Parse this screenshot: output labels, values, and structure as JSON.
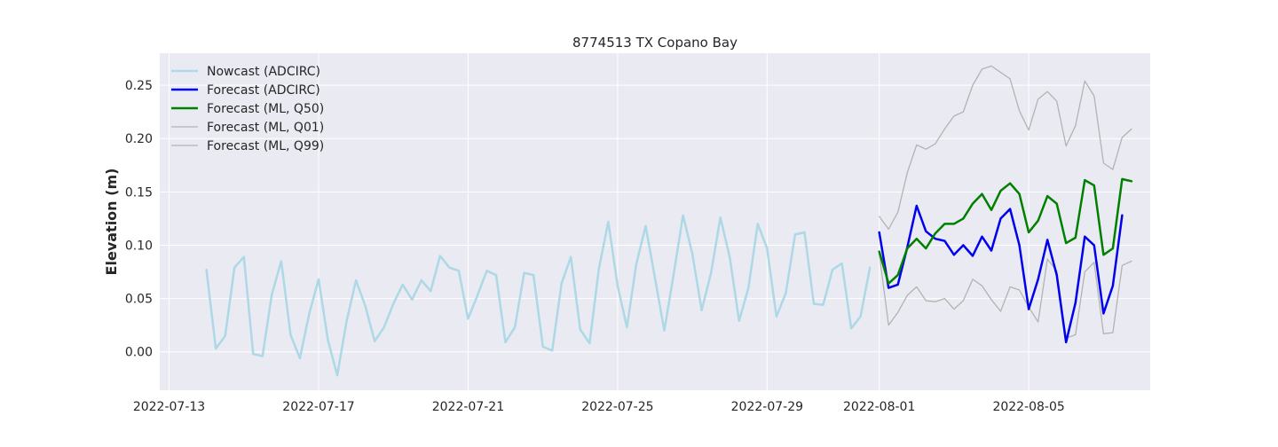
{
  "chart_data": {
    "type": "line",
    "title": "8774513 TX Copano Bay",
    "xlabel": "",
    "ylabel": "Elevation (m)",
    "x_axis_type": "date",
    "xlim": [
      "2022-07-12T18:00",
      "2022-08-08T06:00"
    ],
    "ylim": [
      -0.036,
      0.28
    ],
    "x_ticks": [
      "2022-07-13",
      "2022-07-17",
      "2022-07-21",
      "2022-07-25",
      "2022-07-29",
      "2022-08-01",
      "2022-08-05"
    ],
    "y_ticks": [
      0.0,
      0.05,
      0.1,
      0.15,
      0.2,
      0.25
    ],
    "y_tick_labels": [
      "0.00",
      "0.05",
      "0.10",
      "0.15",
      "0.20",
      "0.25"
    ],
    "grid": true,
    "legend_position": "top-left",
    "background": "#eaeaf2",
    "series": [
      {
        "name": "Nowcast (ADCIRC)",
        "color": "#add8e6",
        "width": 2.5,
        "x": [
          "2022-07-14T00:00",
          "2022-07-14T06:00",
          "2022-07-14T12:00",
          "2022-07-14T18:00",
          "2022-07-15T00:00",
          "2022-07-15T06:00",
          "2022-07-15T12:00",
          "2022-07-15T18:00",
          "2022-07-16T00:00",
          "2022-07-16T06:00",
          "2022-07-16T12:00",
          "2022-07-16T18:00",
          "2022-07-17T00:00",
          "2022-07-17T06:00",
          "2022-07-17T12:00",
          "2022-07-17T18:00",
          "2022-07-18T00:00",
          "2022-07-18T06:00",
          "2022-07-18T12:00",
          "2022-07-18T18:00",
          "2022-07-19T00:00",
          "2022-07-19T06:00",
          "2022-07-19T12:00",
          "2022-07-19T18:00",
          "2022-07-20T00:00",
          "2022-07-20T06:00",
          "2022-07-20T12:00",
          "2022-07-20T18:00",
          "2022-07-21T00:00",
          "2022-07-21T06:00",
          "2022-07-21T12:00",
          "2022-07-21T18:00",
          "2022-07-22T00:00",
          "2022-07-22T06:00",
          "2022-07-22T12:00",
          "2022-07-22T18:00",
          "2022-07-23T00:00",
          "2022-07-23T06:00",
          "2022-07-23T12:00",
          "2022-07-23T18:00",
          "2022-07-24T00:00",
          "2022-07-24T06:00",
          "2022-07-24T12:00",
          "2022-07-24T18:00",
          "2022-07-25T00:00",
          "2022-07-25T06:00",
          "2022-07-25T12:00",
          "2022-07-25T18:00",
          "2022-07-26T00:00",
          "2022-07-26T06:00",
          "2022-07-26T12:00",
          "2022-07-26T18:00",
          "2022-07-27T00:00",
          "2022-07-27T06:00",
          "2022-07-27T12:00",
          "2022-07-27T18:00",
          "2022-07-28T00:00",
          "2022-07-28T06:00",
          "2022-07-28T12:00",
          "2022-07-28T18:00",
          "2022-07-29T00:00",
          "2022-07-29T06:00",
          "2022-07-29T12:00",
          "2022-07-29T18:00",
          "2022-07-30T00:00",
          "2022-07-30T06:00",
          "2022-07-30T12:00",
          "2022-07-30T18:00",
          "2022-07-31T00:00",
          "2022-07-31T06:00",
          "2022-07-31T12:00",
          "2022-07-31T18:00"
        ],
        "values": [
          0.077,
          0.003,
          0.015,
          0.079,
          0.089,
          -0.002,
          -0.004,
          0.054,
          0.085,
          0.016,
          -0.006,
          0.036,
          0.068,
          0.011,
          -0.022,
          0.029,
          0.067,
          0.043,
          0.01,
          0.023,
          0.045,
          0.063,
          0.049,
          0.067,
          0.057,
          0.09,
          0.079,
          0.076,
          0.031,
          0.053,
          0.076,
          0.072,
          0.009,
          0.023,
          0.074,
          0.072,
          0.005,
          0.001,
          0.064,
          0.089,
          0.021,
          0.008,
          0.078,
          0.122,
          0.062,
          0.023,
          0.082,
          0.118,
          0.069,
          0.02,
          0.073,
          0.128,
          0.092,
          0.039,
          0.074,
          0.126,
          0.089,
          0.029,
          0.06,
          0.12,
          0.097,
          0.033,
          0.055,
          0.11,
          0.112,
          0.045,
          0.044,
          0.077,
          0.083,
          0.022,
          0.033,
          0.079
        ]
      },
      {
        "name": "Forecast (ADCIRC)",
        "color": "#0000ee",
        "width": 2.5,
        "x": [
          "2022-08-01T00:00",
          "2022-08-01T06:00",
          "2022-08-01T12:00",
          "2022-08-01T18:00",
          "2022-08-02T00:00",
          "2022-08-02T06:00",
          "2022-08-02T12:00",
          "2022-08-02T18:00",
          "2022-08-03T00:00",
          "2022-08-03T06:00",
          "2022-08-03T12:00",
          "2022-08-03T18:00",
          "2022-08-04T00:00",
          "2022-08-04T06:00",
          "2022-08-04T12:00",
          "2022-08-04T18:00",
          "2022-08-05T00:00",
          "2022-08-05T06:00",
          "2022-08-05T12:00",
          "2022-08-05T18:00",
          "2022-08-06T00:00",
          "2022-08-06T06:00",
          "2022-08-06T12:00",
          "2022-08-06T18:00",
          "2022-08-07T00:00",
          "2022-08-07T06:00",
          "2022-08-07T12:00"
        ],
        "values": [
          0.112,
          0.06,
          0.063,
          0.098,
          0.137,
          0.113,
          0.106,
          0.104,
          0.091,
          0.1,
          0.09,
          0.108,
          0.095,
          0.125,
          0.134,
          0.1,
          0.04,
          0.068,
          0.105,
          0.072,
          0.009,
          0.046,
          0.108,
          0.1,
          0.036,
          0.062,
          0.128
        ]
      },
      {
        "name": "Forecast (ML, Q50)",
        "color": "#008000",
        "width": 2.5,
        "x": [
          "2022-08-01T00:00",
          "2022-08-01T06:00",
          "2022-08-01T12:00",
          "2022-08-01T18:00",
          "2022-08-02T00:00",
          "2022-08-02T06:00",
          "2022-08-02T12:00",
          "2022-08-02T18:00",
          "2022-08-03T00:00",
          "2022-08-03T06:00",
          "2022-08-03T12:00",
          "2022-08-03T18:00",
          "2022-08-04T00:00",
          "2022-08-04T06:00",
          "2022-08-04T12:00",
          "2022-08-04T18:00",
          "2022-08-05T00:00",
          "2022-08-05T06:00",
          "2022-08-05T12:00",
          "2022-08-05T18:00",
          "2022-08-06T00:00",
          "2022-08-06T06:00",
          "2022-08-06T12:00",
          "2022-08-06T18:00",
          "2022-08-07T00:00",
          "2022-08-07T06:00",
          "2022-08-07T12:00",
          "2022-08-07T18:00"
        ],
        "values": [
          0.094,
          0.064,
          0.072,
          0.097,
          0.106,
          0.097,
          0.111,
          0.12,
          0.12,
          0.125,
          0.139,
          0.148,
          0.133,
          0.151,
          0.158,
          0.148,
          0.112,
          0.123,
          0.146,
          0.139,
          0.102,
          0.107,
          0.161,
          0.156,
          0.091,
          0.097,
          0.162,
          0.16
        ]
      },
      {
        "name": "Forecast (ML, Q01)",
        "color": "#b3b3b3",
        "width": 1.3,
        "x": [
          "2022-08-01T00:00",
          "2022-08-01T06:00",
          "2022-08-01T12:00",
          "2022-08-01T18:00",
          "2022-08-02T00:00",
          "2022-08-02T06:00",
          "2022-08-02T12:00",
          "2022-08-02T18:00",
          "2022-08-03T00:00",
          "2022-08-03T06:00",
          "2022-08-03T12:00",
          "2022-08-03T18:00",
          "2022-08-04T00:00",
          "2022-08-04T06:00",
          "2022-08-04T12:00",
          "2022-08-04T18:00",
          "2022-08-05T00:00",
          "2022-08-05T06:00",
          "2022-08-05T12:00",
          "2022-08-05T18:00",
          "2022-08-06T00:00",
          "2022-08-06T06:00",
          "2022-08-06T12:00",
          "2022-08-06T18:00",
          "2022-08-07T00:00",
          "2022-08-07T06:00",
          "2022-08-07T12:00",
          "2022-08-07T18:00"
        ],
        "values": [
          0.092,
          0.025,
          0.037,
          0.053,
          0.061,
          0.048,
          0.047,
          0.05,
          0.04,
          0.048,
          0.068,
          0.062,
          0.049,
          0.038,
          0.061,
          0.058,
          0.042,
          0.028,
          0.087,
          0.076,
          0.013,
          0.016,
          0.075,
          0.084,
          0.017,
          0.018,
          0.081,
          0.085
        ]
      },
      {
        "name": "Forecast (ML, Q99)",
        "color": "#b3b3b3",
        "width": 1.3,
        "x": [
          "2022-08-01T00:00",
          "2022-08-01T06:00",
          "2022-08-01T12:00",
          "2022-08-01T18:00",
          "2022-08-02T00:00",
          "2022-08-02T06:00",
          "2022-08-02T12:00",
          "2022-08-02T18:00",
          "2022-08-03T00:00",
          "2022-08-03T06:00",
          "2022-08-03T12:00",
          "2022-08-03T18:00",
          "2022-08-04T00:00",
          "2022-08-04T06:00",
          "2022-08-04T12:00",
          "2022-08-04T18:00",
          "2022-08-05T00:00",
          "2022-08-05T06:00",
          "2022-08-05T12:00",
          "2022-08-05T18:00",
          "2022-08-06T00:00",
          "2022-08-06T06:00",
          "2022-08-06T12:00",
          "2022-08-06T18:00",
          "2022-08-07T00:00",
          "2022-08-07T06:00",
          "2022-08-07T12:00",
          "2022-08-07T18:00"
        ],
        "values": [
          0.127,
          0.115,
          0.131,
          0.168,
          0.194,
          0.19,
          0.195,
          0.209,
          0.221,
          0.225,
          0.25,
          0.265,
          0.268,
          0.262,
          0.256,
          0.226,
          0.208,
          0.237,
          0.244,
          0.235,
          0.193,
          0.212,
          0.254,
          0.24,
          0.177,
          0.171,
          0.201,
          0.209
        ]
      }
    ]
  }
}
